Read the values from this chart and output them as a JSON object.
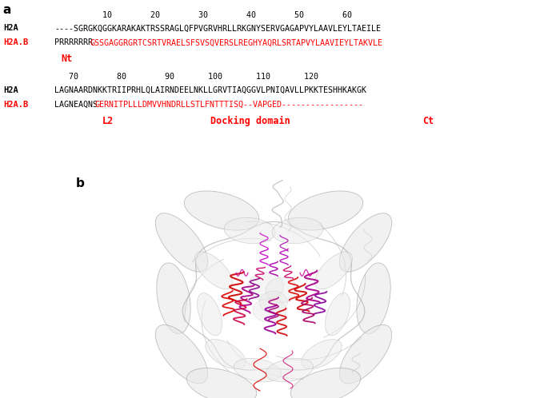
{
  "panel_a_label": "a",
  "panel_b_label": "b",
  "ruler1": "          10        20        30        40        50        60",
  "h2a_label": "H2A",
  "h2ab_label": "H2A.B",
  "h2a_seq1": "----SGRGKQGGKARAKAKTRSSRAGLQFPVGRVHRLLRKGNYSERVGAGAPVYLAAVLEYLTAEILE",
  "h2ab_seq1_blk": "PRRRRRRR",
  "h2ab_seq1_red": "GSSGAGGRGRTCSRTVRAELSFSVSQVERSLREGHYAQRLSRTAPVYLAAVIEYLTAKVLE",
  "nt_label": "Nt",
  "ruler2": "    70        80        90       100       110       120",
  "h2a_seq2": "LAGNAARDNKKTRIIPRHLQLAIRNDEELNKLLGRVTIAQGGVLPNIQAVLLPKKTESHHKAKGK",
  "h2ab_seq2_blk": "LAGNEAQNS",
  "h2ab_seq2_red": "GERNITPLLLDMVVHNDRLLSTLFNTTTISQ--VAPGED-----------------",
  "l2_label": "L2",
  "dock_label": "Docking domain",
  "ct_label": "Ct",
  "black": "#000000",
  "red": "#ff0000",
  "gray_dna": "#b0b0b0",
  "gray_light": "#d0d0d0"
}
